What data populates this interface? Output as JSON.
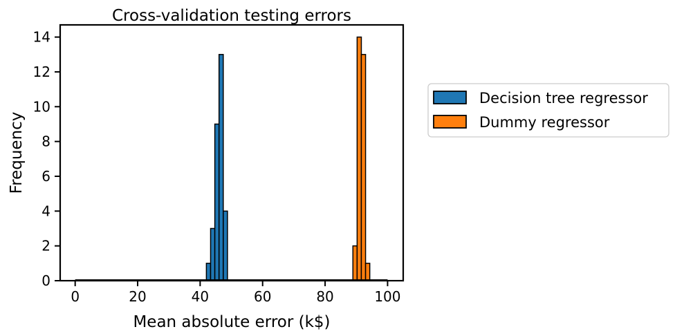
{
  "chart_data": {
    "type": "bar",
    "title": "Cross-validation testing errors",
    "xlabel": "Mean absolute error (k$)",
    "ylabel": "Frequency",
    "xlim": [
      -4.8,
      105
    ],
    "ylim": [
      0,
      14.7
    ],
    "xticks": [
      0,
      20,
      40,
      60,
      80,
      100
    ],
    "yticks": [
      0,
      2,
      4,
      6,
      8,
      10,
      12,
      14
    ],
    "bin_width": 1.35,
    "legend_position": "outside-right",
    "grid": false,
    "series": [
      {
        "name": "Decision tree regressor",
        "color": "#1f77b4",
        "bins": [
          {
            "x": 42.0,
            "count": 1
          },
          {
            "x": 43.35,
            "count": 3
          },
          {
            "x": 44.7,
            "count": 9
          },
          {
            "x": 46.05,
            "count": 13
          },
          {
            "x": 47.4,
            "count": 4
          }
        ]
      },
      {
        "name": "Dummy regressor",
        "color": "#ff7f0e",
        "bins": [
          {
            "x": 88.9,
            "count": 2
          },
          {
            "x": 90.25,
            "count": 14
          },
          {
            "x": 91.6,
            "count": 13
          },
          {
            "x": 92.95,
            "count": 1
          }
        ]
      }
    ]
  }
}
